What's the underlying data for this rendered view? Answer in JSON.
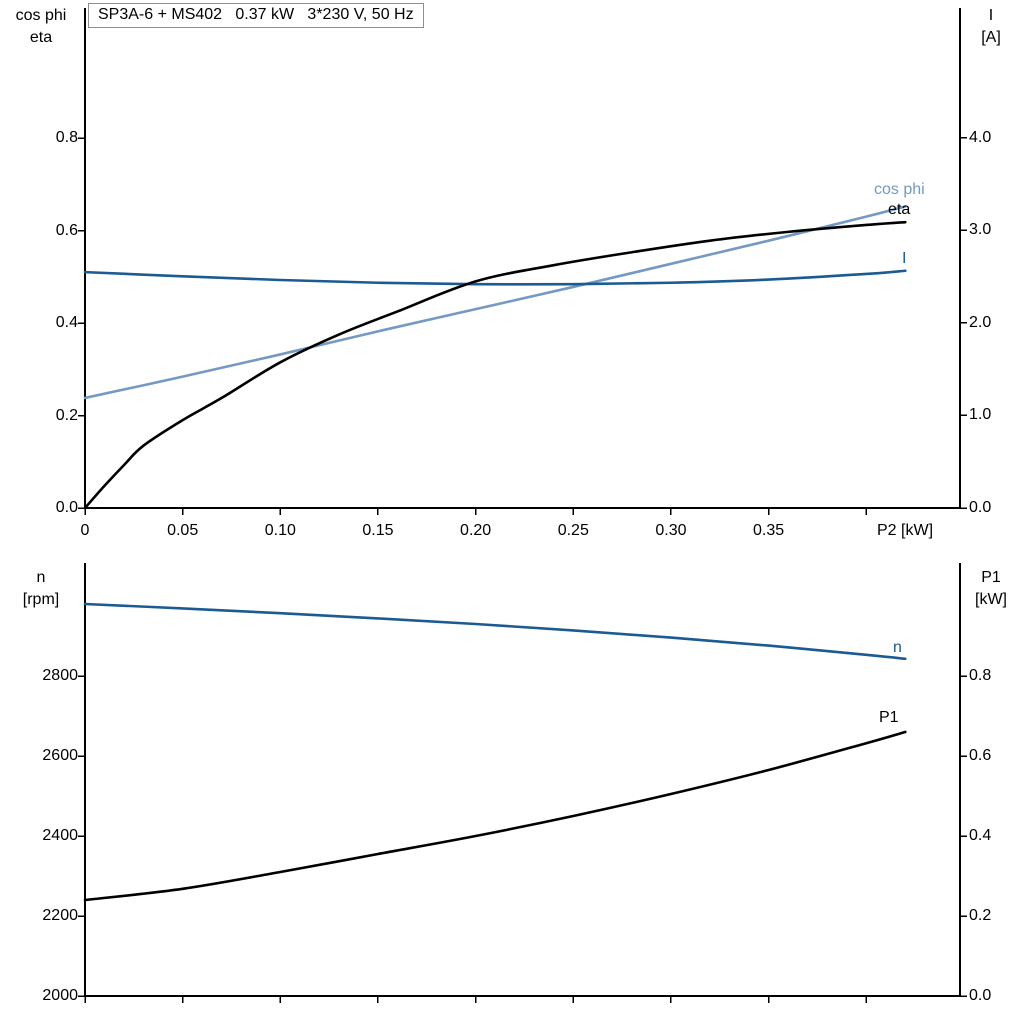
{
  "header": {
    "title": "SP3A-6 + MS402   0.37 kW   3*230 V, 50 Hz"
  },
  "colors": {
    "black": "#000000",
    "dark_blue": "#1c5a93",
    "light_blue": "#7499c2",
    "axis": "#000000",
    "title_border": "#8f8f8f"
  },
  "chart_data": [
    {
      "type": "line",
      "title": "SP3A-6 + MS402 0.37 kW 3*230 V, 50 Hz",
      "xlabel": "P2 [kW]",
      "ylabel_left_lines": [
        "cos phi",
        "eta"
      ],
      "ylabel_right_lines": [
        "I",
        "[A]"
      ],
      "x_range_kw": [
        0,
        0.448
      ],
      "ylim_left": [
        0,
        1.08
      ],
      "ylim_right_A": [
        0,
        5.4
      ],
      "grid": "off",
      "xticks": [
        "0",
        "0.05",
        "0.10",
        "0.15",
        "0.20",
        "0.25",
        "0.30",
        "0.35"
      ],
      "xticks_unlabeled": [
        "0.40"
      ],
      "yticks_left": [
        "0.8",
        "0.6",
        "0.4",
        "0.2",
        "0.0"
      ],
      "yticks_right": [
        "4.0",
        "3.0",
        "2.0",
        "1.0",
        "0.0"
      ],
      "series": [
        {
          "name": "cos_phi",
          "label": "cos phi",
          "axis": "left",
          "color_key": "light_blue",
          "x": [
            0,
            0.05,
            0.1,
            0.15,
            0.2,
            0.25,
            0.3,
            0.35,
            0.4,
            0.42
          ],
          "y": [
            0.238,
            0.284,
            0.332,
            0.382,
            0.43,
            0.478,
            0.528,
            0.578,
            0.63,
            0.652
          ]
        },
        {
          "name": "current",
          "label": "I",
          "axis": "right",
          "color_key": "dark_blue",
          "x": [
            0,
            0.05,
            0.1,
            0.15,
            0.2,
            0.25,
            0.3,
            0.35,
            0.4,
            0.42
          ],
          "y": [
            2.55,
            2.505,
            2.465,
            2.435,
            2.42,
            2.42,
            2.435,
            2.47,
            2.53,
            2.565
          ]
        },
        {
          "name": "eta",
          "label": "eta",
          "axis": "left",
          "color_key": "black",
          "x": [
            0,
            0.01,
            0.02,
            0.03,
            0.05,
            0.07,
            0.1,
            0.13,
            0.16,
            0.2,
            0.24,
            0.28,
            0.32,
            0.36,
            0.4,
            0.42
          ],
          "y": [
            0,
            0.048,
            0.093,
            0.135,
            0.19,
            0.238,
            0.315,
            0.375,
            0.425,
            0.49,
            0.525,
            0.553,
            0.578,
            0.597,
            0.612,
            0.618
          ]
        }
      ]
    },
    {
      "type": "line",
      "title": "",
      "xlabel": "",
      "ylabel_left_lines": [
        "n",
        "[rpm]"
      ],
      "ylabel_right_lines": [
        "P1",
        "[kW]"
      ],
      "x_range_kw": [
        0,
        0.448
      ],
      "ylim_left_rpm": [
        2000,
        3080
      ],
      "ylim_right_kw": [
        0,
        1.08
      ],
      "grid": "off",
      "yticks_left": [
        "2800",
        "2600",
        "2400",
        "2200",
        "2000"
      ],
      "yticks_right": [
        "0.8",
        "0.6",
        "0.4",
        "0.2",
        "0.0"
      ],
      "series": [
        {
          "name": "P1",
          "label": "P1",
          "axis": "right",
          "color_key": "black",
          "x": [
            0,
            0.05,
            0.1,
            0.15,
            0.2,
            0.25,
            0.3,
            0.35,
            0.4,
            0.42
          ],
          "y": [
            0.24,
            0.268,
            0.31,
            0.355,
            0.4,
            0.45,
            0.505,
            0.565,
            0.632,
            0.66
          ]
        },
        {
          "name": "speed",
          "label": "n",
          "axis": "left",
          "color_key": "dark_blue",
          "x": [
            0,
            0.05,
            0.1,
            0.15,
            0.2,
            0.25,
            0.3,
            0.35,
            0.4,
            0.42
          ],
          "y": [
            2980,
            2969,
            2957,
            2944,
            2930,
            2914,
            2896,
            2876,
            2853,
            2843
          ]
        }
      ]
    }
  ]
}
